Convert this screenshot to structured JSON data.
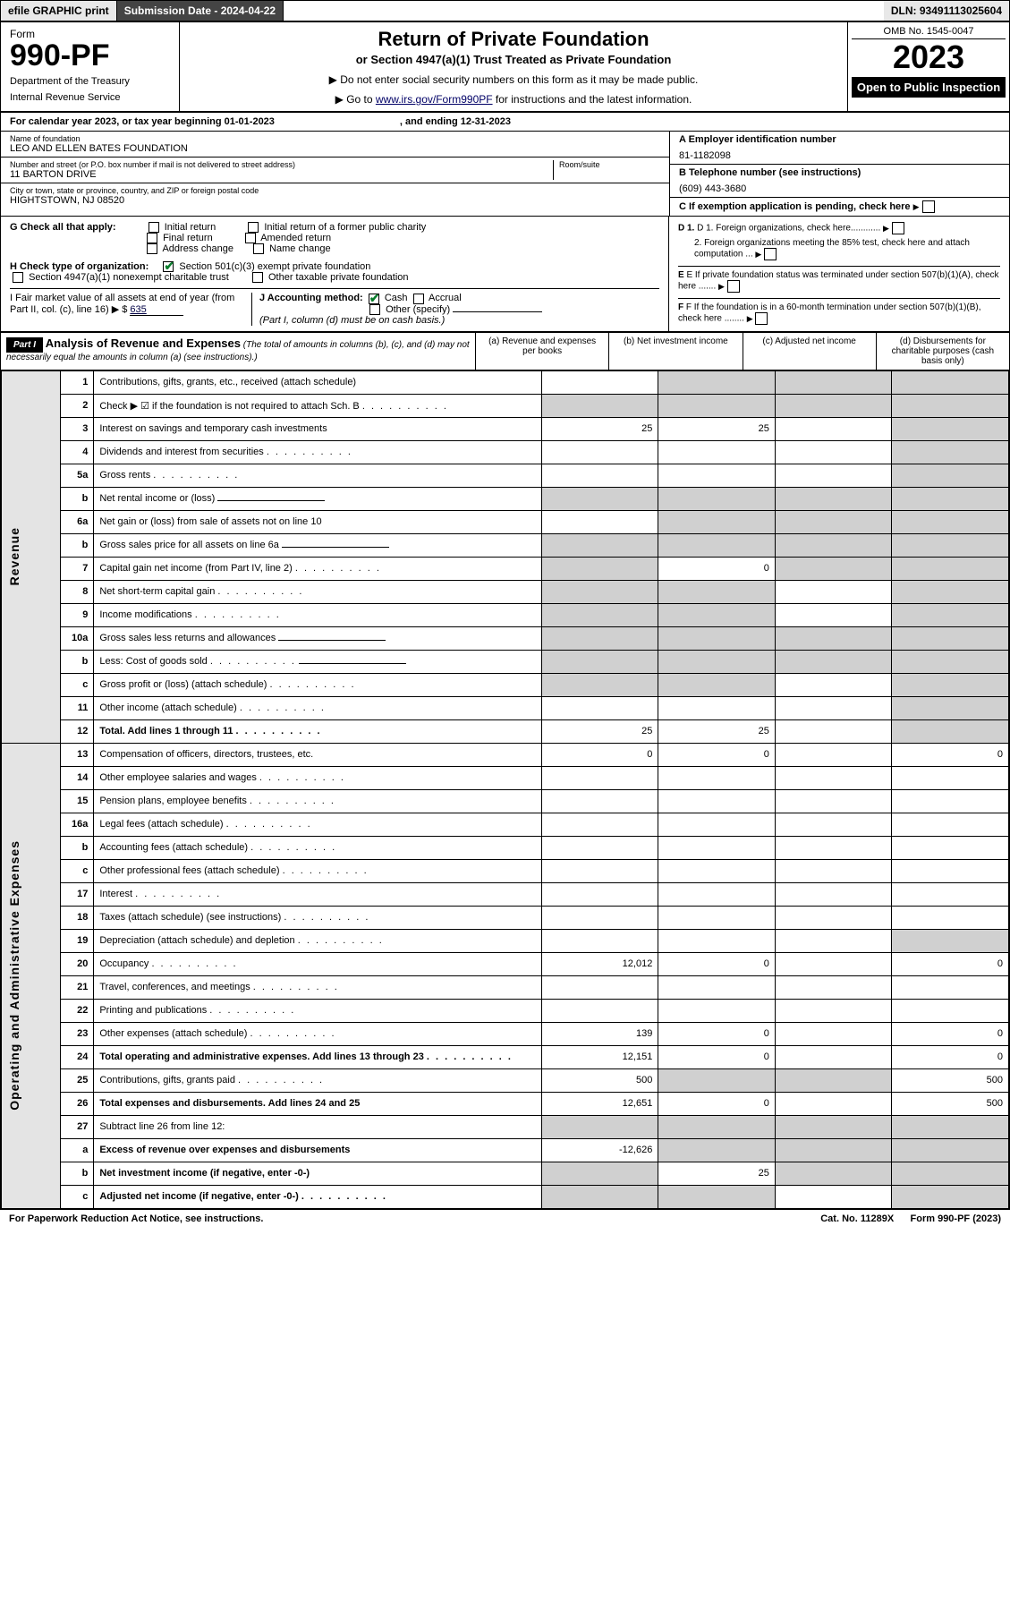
{
  "top": {
    "efile": "efile GRAPHIC print",
    "submission_label": "Submission Date - 2024-04-22",
    "dln": "DLN: 93491113025604"
  },
  "header": {
    "form_word": "Form",
    "form_num": "990-PF",
    "dept": "Department of the Treasury",
    "irs": "Internal Revenue Service",
    "title": "Return of Private Foundation",
    "subtitle": "or Section 4947(a)(1) Trust Treated as Private Foundation",
    "inst1": "▶ Do not enter social security numbers on this form as it may be made public.",
    "inst2_pre": "▶ Go to ",
    "inst2_link": "www.irs.gov/Form990PF",
    "inst2_post": " for instructions and the latest information.",
    "omb": "OMB No. 1545-0047",
    "year": "2023",
    "open": "Open to Public Inspection"
  },
  "calyear": {
    "text": "For calendar year 2023, or tax year beginning 01-01-2023",
    "ending": ", and ending 12-31-2023"
  },
  "id": {
    "name_lbl": "Name of foundation",
    "name": "LEO AND ELLEN BATES FOUNDATION",
    "addr_lbl": "Number and street (or P.O. box number if mail is not delivered to street address)",
    "addr": "11 BARTON DRIVE",
    "room_lbl": "Room/suite",
    "city_lbl": "City or town, state or province, country, and ZIP or foreign postal code",
    "city": "HIGHTSTOWN, NJ  08520",
    "a_lbl": "A Employer identification number",
    "a_val": "81-1182098",
    "b_lbl": "B Telephone number (see instructions)",
    "b_val": "(609) 443-3680",
    "c_lbl": "C If exemption application is pending, check here"
  },
  "checks": {
    "g": "G Check all that apply:",
    "g_opts": [
      "Initial return",
      "Initial return of a former public charity",
      "Final return",
      "Amended return",
      "Address change",
      "Name change"
    ],
    "h": "H Check type of organization:",
    "h1": "Section 501(c)(3) exempt private foundation",
    "h2": "Section 4947(a)(1) nonexempt charitable trust",
    "h3": "Other taxable private foundation",
    "i": "I Fair market value of all assets at end of year (from Part II, col. (c), line 16) ▶ $",
    "i_val": "635",
    "j": "J Accounting method:",
    "j_cash": "Cash",
    "j_accr": "Accrual",
    "j_other": "Other (specify)",
    "j_note": "(Part I, column (d) must be on cash basis.)",
    "d1": "D 1. Foreign organizations, check here............",
    "d2": "2. Foreign organizations meeting the 85% test, check here and attach computation ...",
    "e": "E If private foundation status was terminated under section 507(b)(1)(A), check here .......",
    "f": "F If the foundation is in a 60-month termination under section 507(b)(1)(B), check here ........"
  },
  "part1": {
    "label": "Part I",
    "heading": "Analysis of Revenue and Expenses",
    "heading_note": " (The total of amounts in columns (b), (c), and (d) may not necessarily equal the amounts in column (a) (see instructions).)",
    "cols": {
      "a": "(a)  Revenue and expenses per books",
      "b": "(b)  Net investment income",
      "c": "(c)  Adjusted net income",
      "d": "(d)  Disbursements for charitable purposes (cash basis only)"
    },
    "side_rev": "Revenue",
    "side_exp": "Operating and Administrative Expenses",
    "rows": [
      {
        "n": "1",
        "t": "Contributions, gifts, grants, etc., received (attach schedule)",
        "a": "",
        "b": null,
        "c": null,
        "d": null
      },
      {
        "n": "2",
        "t": "Check ▶ ☑ if the foundation is not required to attach Sch. B",
        "a": null,
        "b": null,
        "c": null,
        "d": null,
        "dots": true
      },
      {
        "n": "3",
        "t": "Interest on savings and temporary cash investments",
        "a": "25",
        "b": "25",
        "c": "",
        "d": null
      },
      {
        "n": "4",
        "t": "Dividends and interest from securities",
        "a": "",
        "b": "",
        "c": "",
        "d": null,
        "dots": true
      },
      {
        "n": "5a",
        "t": "Gross rents",
        "a": "",
        "b": "",
        "c": "",
        "d": null,
        "dots": true
      },
      {
        "n": "b",
        "t": "Net rental income or (loss)",
        "a": null,
        "b": null,
        "c": null,
        "d": null,
        "inset": true
      },
      {
        "n": "6a",
        "t": "Net gain or (loss) from sale of assets not on line 10",
        "a": "",
        "b": null,
        "c": null,
        "d": null
      },
      {
        "n": "b",
        "t": "Gross sales price for all assets on line 6a",
        "a": null,
        "b": null,
        "c": null,
        "d": null,
        "inset": true
      },
      {
        "n": "7",
        "t": "Capital gain net income (from Part IV, line 2)",
        "a": null,
        "b": "0",
        "c": null,
        "d": null,
        "dots": true
      },
      {
        "n": "8",
        "t": "Net short-term capital gain",
        "a": null,
        "b": null,
        "c": "",
        "d": null,
        "dots": true
      },
      {
        "n": "9",
        "t": "Income modifications",
        "a": null,
        "b": null,
        "c": "",
        "d": null,
        "dots": true
      },
      {
        "n": "10a",
        "t": "Gross sales less returns and allowances",
        "a": null,
        "b": null,
        "c": null,
        "d": null,
        "inset": true
      },
      {
        "n": "b",
        "t": "Less: Cost of goods sold",
        "a": null,
        "b": null,
        "c": null,
        "d": null,
        "inset": true,
        "dots": true
      },
      {
        "n": "c",
        "t": "Gross profit or (loss) (attach schedule)",
        "a": null,
        "b": null,
        "c": "",
        "d": null,
        "dots": true
      },
      {
        "n": "11",
        "t": "Other income (attach schedule)",
        "a": "",
        "b": "",
        "c": "",
        "d": null,
        "dots": true
      },
      {
        "n": "12",
        "t": "Total. Add lines 1 through 11",
        "a": "25",
        "b": "25",
        "c": "",
        "d": null,
        "bold": true,
        "dots": true
      }
    ],
    "exp_rows": [
      {
        "n": "13",
        "t": "Compensation of officers, directors, trustees, etc.",
        "a": "0",
        "b": "0",
        "c": "",
        "d": "0"
      },
      {
        "n": "14",
        "t": "Other employee salaries and wages",
        "a": "",
        "b": "",
        "c": "",
        "d": "",
        "dots": true
      },
      {
        "n": "15",
        "t": "Pension plans, employee benefits",
        "a": "",
        "b": "",
        "c": "",
        "d": "",
        "dots": true
      },
      {
        "n": "16a",
        "t": "Legal fees (attach schedule)",
        "a": "",
        "b": "",
        "c": "",
        "d": "",
        "dots": true
      },
      {
        "n": "b",
        "t": "Accounting fees (attach schedule)",
        "a": "",
        "b": "",
        "c": "",
        "d": "",
        "dots": true
      },
      {
        "n": "c",
        "t": "Other professional fees (attach schedule)",
        "a": "",
        "b": "",
        "c": "",
        "d": "",
        "dots": true
      },
      {
        "n": "17",
        "t": "Interest",
        "a": "",
        "b": "",
        "c": "",
        "d": "",
        "dots": true
      },
      {
        "n": "18",
        "t": "Taxes (attach schedule) (see instructions)",
        "a": "",
        "b": "",
        "c": "",
        "d": "",
        "dots": true
      },
      {
        "n": "19",
        "t": "Depreciation (attach schedule) and depletion",
        "a": "",
        "b": "",
        "c": "",
        "d": null,
        "dots": true
      },
      {
        "n": "20",
        "t": "Occupancy",
        "a": "12,012",
        "b": "0",
        "c": "",
        "d": "0",
        "dots": true
      },
      {
        "n": "21",
        "t": "Travel, conferences, and meetings",
        "a": "",
        "b": "",
        "c": "",
        "d": "",
        "dots": true
      },
      {
        "n": "22",
        "t": "Printing and publications",
        "a": "",
        "b": "",
        "c": "",
        "d": "",
        "dots": true
      },
      {
        "n": "23",
        "t": "Other expenses (attach schedule)",
        "a": "139",
        "b": "0",
        "c": "",
        "d": "0",
        "dots": true
      },
      {
        "n": "24",
        "t": "Total operating and administrative expenses. Add lines 13 through 23",
        "a": "12,151",
        "b": "0",
        "c": "",
        "d": "0",
        "bold": true,
        "dots": true
      },
      {
        "n": "25",
        "t": "Contributions, gifts, grants paid",
        "a": "500",
        "b": null,
        "c": null,
        "d": "500",
        "dots": true
      },
      {
        "n": "26",
        "t": "Total expenses and disbursements. Add lines 24 and 25",
        "a": "12,651",
        "b": "0",
        "c": "",
        "d": "500",
        "bold": true
      },
      {
        "n": "27",
        "t": "Subtract line 26 from line 12:",
        "a": null,
        "b": null,
        "c": null,
        "d": null
      },
      {
        "n": "a",
        "t": "Excess of revenue over expenses and disbursements",
        "a": "-12,626",
        "b": null,
        "c": null,
        "d": null,
        "bold": true
      },
      {
        "n": "b",
        "t": "Net investment income (if negative, enter -0-)",
        "a": null,
        "b": "25",
        "c": null,
        "d": null,
        "bold": true
      },
      {
        "n": "c",
        "t": "Adjusted net income (if negative, enter -0-)",
        "a": null,
        "b": null,
        "c": "",
        "d": null,
        "bold": true,
        "dots": true
      }
    ]
  },
  "footer": {
    "l": "For Paperwork Reduction Act Notice, see instructions.",
    "m": "Cat. No. 11289X",
    "r": "Form 990-PF (2023)"
  }
}
